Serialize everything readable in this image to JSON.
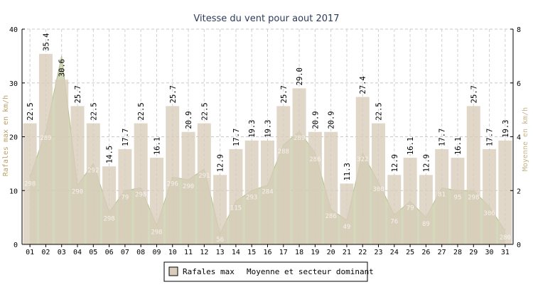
{
  "chart_data": {
    "type": "bar",
    "title": "Vitesse du vent pour aout 2017",
    "ylabel": "Rafales max en km/h",
    "y2label": "Moyenne en km/h",
    "ylim": [
      0,
      40
    ],
    "y2lim": [
      0,
      8
    ],
    "yticks": [
      "0",
      "10",
      "20",
      "30",
      "40"
    ],
    "y2ticks": [
      "0",
      "2",
      "4",
      "6",
      "8"
    ],
    "grid": true,
    "legend_position": "bottom-center",
    "categories": [
      "01",
      "02",
      "03",
      "04",
      "05",
      "06",
      "07",
      "08",
      "09",
      "10",
      "11",
      "12",
      "13",
      "14",
      "15",
      "16",
      "17",
      "18",
      "19",
      "20",
      "21",
      "22",
      "23",
      "24",
      "25",
      "26",
      "27",
      "28",
      "29",
      "30",
      "31"
    ],
    "series": [
      {
        "name": "Rafales max",
        "type": "bar",
        "axis": "left",
        "color": "#d9ccba",
        "values": [
          22.5,
          35.4,
          30.6,
          25.7,
          22.5,
          14.5,
          17.7,
          22.5,
          16.1,
          25.7,
          20.9,
          22.5,
          12.9,
          17.7,
          19.3,
          19.3,
          25.7,
          29.0,
          20.9,
          20.9,
          11.3,
          27.4,
          22.5,
          12.9,
          16.1,
          12.9,
          17.7,
          16.1,
          25.7,
          17.7,
          19.3
        ],
        "labels": [
          "22.5",
          "35.4",
          "30.6",
          "25.7",
          "22.5",
          "14.5",
          "17.7",
          "22.5",
          "16.1",
          "25.7",
          "20.9",
          "22.5",
          "12.9",
          "17.7",
          "19.3",
          "19.3",
          "25.7",
          "29.0",
          "20.9",
          "20.9",
          "11.3",
          "27.4",
          "22.5",
          "12.9",
          "16.1",
          "12.9",
          "17.7",
          "16.1",
          "25.7",
          "17.7",
          "19.3"
        ]
      },
      {
        "name": "Moyenne et secteur dominant",
        "type": "area",
        "axis": "right",
        "color": "#c5cba6",
        "values": [
          2.5,
          4.2,
          7.0,
          2.2,
          3.0,
          1.2,
          2.0,
          2.1,
          0.7,
          2.5,
          2.4,
          2.8,
          0.4,
          1.6,
          2.0,
          2.2,
          3.7,
          4.2,
          3.4,
          1.3,
          0.9,
          3.4,
          2.3,
          1.1,
          1.6,
          1.0,
          2.1,
          2.0,
          2.0,
          1.4,
          0.5
        ],
        "sectors": [
          "298",
          "289",
          "",
          "290",
          "292",
          "298",
          "79",
          "298",
          "298",
          "296",
          "290",
          "291",
          "56",
          "115",
          "293",
          "284",
          "288",
          "289",
          "286",
          "286",
          "49",
          "322",
          "300",
          "76",
          "79",
          "89",
          "81",
          "95",
          "298",
          "306",
          "280"
        ]
      }
    ]
  }
}
